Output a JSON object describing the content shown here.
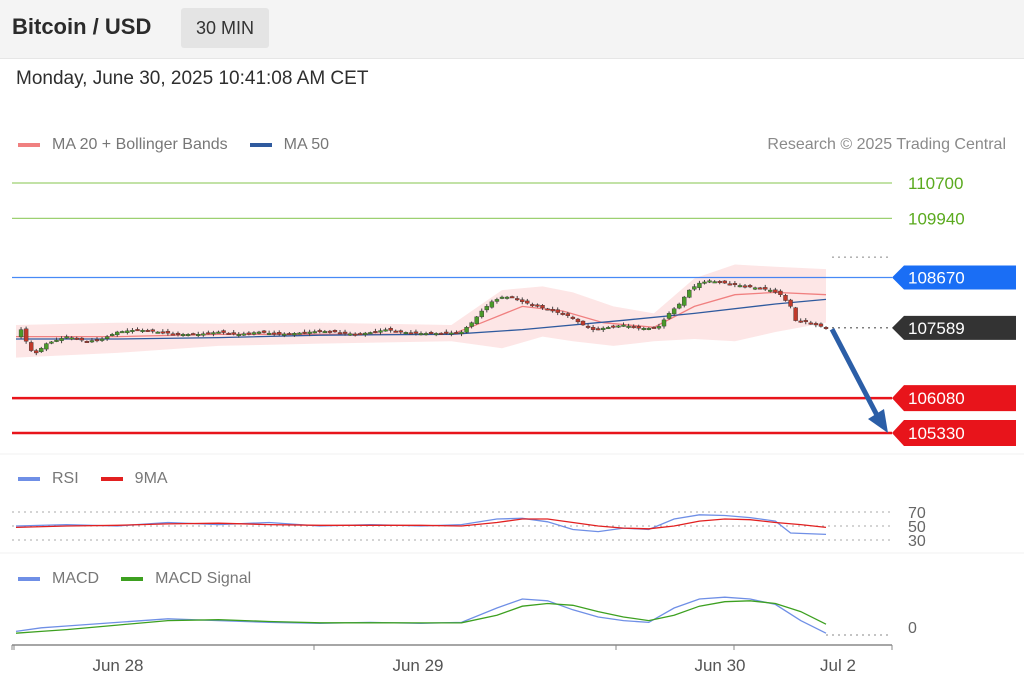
{
  "header": {
    "title": "Bitcoin / USD",
    "timeframe": "30 MIN"
  },
  "date_text": "Monday, June 30, 2025 10:41:08 AM CET",
  "credit": "Research © 2025 Trading Central",
  "colors": {
    "ma20": "#f08080",
    "ma50": "#2f5a9e",
    "bollinger_fill": "#fde3e3",
    "resistance": "#7dc142",
    "pivot": "#1a6ef5",
    "support": "#e8141b",
    "price": "#333333",
    "rsi": "#6f8fe6",
    "rsi_ma": "#e22020",
    "macd": "#6f8fe6",
    "macd_signal": "#3da020",
    "arrow": "#2b5ea7"
  },
  "legend_main": [
    {
      "label": "MA 20 + Bollinger Bands",
      "color": "#f08080"
    },
    {
      "label": "MA 50",
      "color": "#2f5a9e"
    }
  ],
  "legend_rsi": [
    {
      "label": "RSI",
      "color": "#6f8fe6"
    },
    {
      "label": "9MA",
      "color": "#e22020"
    }
  ],
  "legend_macd": [
    {
      "label": "MACD",
      "color": "#6f8fe6"
    },
    {
      "label": "MACD Signal",
      "color": "#3da020"
    }
  ],
  "chart_data": [
    {
      "type": "candlestick",
      "title": "Bitcoin / USD",
      "timeframe": "30 MIN",
      "ylim": [
        104950,
        110950
      ],
      "x_ticks": [
        "Jun 28",
        "Jun 29",
        "Jun 30",
        "Jul 2"
      ],
      "last_price": 107589,
      "levels": [
        {
          "value": 110700,
          "kind": "resistance",
          "label": "110700"
        },
        {
          "value": 109940,
          "kind": "resistance",
          "label": "109940"
        },
        {
          "value": 108670,
          "kind": "pivot",
          "label": "108670"
        },
        {
          "value": 107589,
          "kind": "last",
          "label": "107589"
        },
        {
          "value": 106080,
          "kind": "support",
          "label": "106080"
        },
        {
          "value": 105330,
          "kind": "support",
          "label": "105330"
        }
      ],
      "projection": {
        "from": 107560,
        "to": 105330,
        "direction": "down"
      },
      "close_path": [
        [
          0,
          107400
        ],
        [
          0.6,
          107650
        ],
        [
          2,
          107300
        ],
        [
          3.5,
          107000
        ],
        [
          6,
          107250
        ],
        [
          10,
          107400
        ],
        [
          14,
          107300
        ],
        [
          17,
          107350
        ],
        [
          20,
          107500
        ],
        [
          24,
          107550
        ],
        [
          28,
          107500
        ],
        [
          32,
          107450
        ],
        [
          36,
          107450
        ],
        [
          40,
          107500
        ],
        [
          44,
          107450
        ],
        [
          48,
          107500
        ],
        [
          52,
          107450
        ],
        [
          56,
          107480
        ],
        [
          60,
          107520
        ],
        [
          63,
          107500
        ],
        [
          67,
          107450
        ],
        [
          70,
          107490
        ],
        [
          73,
          107550
        ],
        [
          76,
          107500
        ],
        [
          80,
          107470
        ],
        [
          84,
          107470
        ],
        [
          86,
          107480
        ],
        [
          88,
          107500
        ],
        [
          90,
          107700
        ],
        [
          92,
          107950
        ],
        [
          94,
          108150
        ],
        [
          96,
          108250
        ],
        [
          98,
          108250
        ],
        [
          100,
          108150
        ],
        [
          103,
          108050
        ],
        [
          106,
          107950
        ],
        [
          109,
          107850
        ],
        [
          112,
          107650
        ],
        [
          114,
          107550
        ],
        [
          117,
          107600
        ],
        [
          120,
          107650
        ],
        [
          123,
          107580
        ],
        [
          125,
          107580
        ],
        [
          127,
          107620
        ],
        [
          129,
          107900
        ],
        [
          131,
          108100
        ],
        [
          133,
          108400
        ],
        [
          135,
          108550
        ],
        [
          137,
          108600
        ],
        [
          140,
          108550
        ],
        [
          143,
          108500
        ],
        [
          146,
          108450
        ],
        [
          149,
          108400
        ],
        [
          151,
          108300
        ],
        [
          153,
          108050
        ],
        [
          153.5,
          107750
        ],
        [
          156,
          107720
        ],
        [
          158,
          107650
        ],
        [
          160,
          107589
        ]
      ],
      "ma20_path": [
        [
          0,
          107400
        ],
        [
          20,
          107400
        ],
        [
          40,
          107450
        ],
        [
          60,
          107450
        ],
        [
          86,
          107450
        ],
        [
          92,
          107700
        ],
        [
          100,
          108050
        ],
        [
          108,
          107950
        ],
        [
          116,
          107700
        ],
        [
          126,
          107600
        ],
        [
          134,
          108050
        ],
        [
          142,
          108300
        ],
        [
          150,
          108350
        ],
        [
          160,
          108300
        ]
      ],
      "ma50_path": [
        [
          0,
          107350
        ],
        [
          20,
          107350
        ],
        [
          40,
          107380
        ],
        [
          60,
          107430
        ],
        [
          86,
          107450
        ],
        [
          100,
          107550
        ],
        [
          120,
          107750
        ],
        [
          134,
          107900
        ],
        [
          150,
          108100
        ],
        [
          160,
          108200
        ]
      ],
      "bollinger_upper": [
        [
          0,
          107650
        ],
        [
          20,
          107700
        ],
        [
          40,
          107680
        ],
        [
          60,
          107700
        ],
        [
          86,
          107650
        ],
        [
          96,
          108400
        ],
        [
          104,
          108480
        ],
        [
          110,
          108350
        ],
        [
          118,
          108050
        ],
        [
          126,
          107900
        ],
        [
          134,
          108650
        ],
        [
          142,
          108950
        ],
        [
          150,
          108900
        ],
        [
          160,
          108850
        ]
      ],
      "bollinger_lower": [
        [
          0,
          106950
        ],
        [
          20,
          107050
        ],
        [
          40,
          107200
        ],
        [
          60,
          107250
        ],
        [
          86,
          107300
        ],
        [
          96,
          107150
        ],
        [
          104,
          107400
        ],
        [
          110,
          107300
        ],
        [
          118,
          107200
        ],
        [
          126,
          107300
        ],
        [
          134,
          107350
        ],
        [
          142,
          107300
        ],
        [
          150,
          107500
        ],
        [
          160,
          107700
        ]
      ]
    },
    {
      "type": "line",
      "title": "RSI",
      "ylim": [
        30,
        70
      ],
      "y_ticks": [
        70,
        50,
        30
      ],
      "series": [
        {
          "name": "RSI",
          "values": [
            [
              0,
              50
            ],
            [
              10,
              52
            ],
            [
              20,
              50
            ],
            [
              30,
              55
            ],
            [
              40,
              52
            ],
            [
              50,
              55
            ],
            [
              60,
              50
            ],
            [
              70,
              52
            ],
            [
              80,
              50
            ],
            [
              88,
              52
            ],
            [
              95,
              60
            ],
            [
              100,
              61
            ],
            [
              105,
              56
            ],
            [
              110,
              45
            ],
            [
              115,
              42
            ],
            [
              120,
              47
            ],
            [
              125,
              45
            ],
            [
              130,
              60
            ],
            [
              135,
              66
            ],
            [
              140,
              65
            ],
            [
              145,
              62
            ],
            [
              150,
              57
            ],
            [
              153,
              40
            ],
            [
              160,
              38
            ]
          ]
        },
        {
          "name": "9MA",
          "values": [
            [
              0,
              48
            ],
            [
              10,
              50
            ],
            [
              20,
              51
            ],
            [
              30,
              53
            ],
            [
              40,
              54
            ],
            [
              50,
              52
            ],
            [
              60,
              51
            ],
            [
              70,
              51
            ],
            [
              80,
              51
            ],
            [
              88,
              50
            ],
            [
              95,
              55
            ],
            [
              100,
              60
            ],
            [
              105,
              60
            ],
            [
              110,
              55
            ],
            [
              115,
              50
            ],
            [
              120,
              47
            ],
            [
              125,
              46
            ],
            [
              130,
              50
            ],
            [
              135,
              57
            ],
            [
              140,
              60
            ],
            [
              145,
              59
            ],
            [
              150,
              55
            ],
            [
              155,
              52
            ],
            [
              160,
              48
            ]
          ]
        }
      ]
    },
    {
      "type": "line",
      "title": "MACD",
      "y_ticks": [
        0
      ],
      "series": [
        {
          "name": "MACD",
          "values": [
            [
              0,
              20
            ],
            [
              5,
              40
            ],
            [
              10,
              50
            ],
            [
              20,
              70
            ],
            [
              30,
              90
            ],
            [
              40,
              80
            ],
            [
              50,
              70
            ],
            [
              60,
              65
            ],
            [
              70,
              70
            ],
            [
              80,
              65
            ],
            [
              88,
              70
            ],
            [
              95,
              150
            ],
            [
              100,
              200
            ],
            [
              105,
              190
            ],
            [
              110,
              140
            ],
            [
              115,
              100
            ],
            [
              120,
              80
            ],
            [
              125,
              70
            ],
            [
              130,
              150
            ],
            [
              135,
              200
            ],
            [
              140,
              210
            ],
            [
              145,
              200
            ],
            [
              150,
              170
            ],
            [
              155,
              80
            ],
            [
              160,
              10
            ]
          ]
        },
        {
          "name": "MACD Signal",
          "values": [
            [
              0,
              10
            ],
            [
              5,
              20
            ],
            [
              10,
              30
            ],
            [
              20,
              55
            ],
            [
              30,
              80
            ],
            [
              40,
              85
            ],
            [
              50,
              75
            ],
            [
              60,
              68
            ],
            [
              70,
              68
            ],
            [
              80,
              67
            ],
            [
              88,
              68
            ],
            [
              95,
              110
            ],
            [
              100,
              160
            ],
            [
              105,
              175
            ],
            [
              110,
              165
            ],
            [
              115,
              130
            ],
            [
              120,
              100
            ],
            [
              125,
              80
            ],
            [
              130,
              110
            ],
            [
              135,
              160
            ],
            [
              140,
              185
            ],
            [
              145,
              190
            ],
            [
              150,
              175
            ],
            [
              155,
              130
            ],
            [
              160,
              60
            ]
          ]
        }
      ]
    }
  ]
}
